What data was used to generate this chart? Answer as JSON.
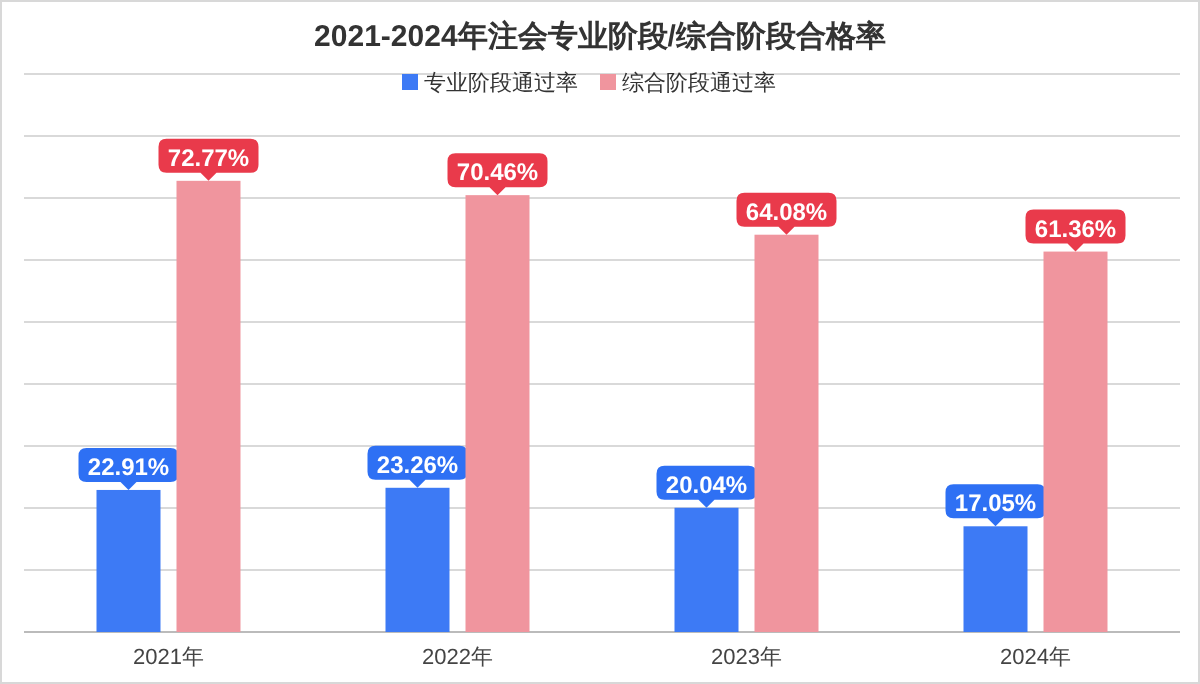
{
  "chart_data": {
    "type": "bar",
    "title": "2021-2024年注会专业阶段/综合阶段合格率",
    "categories": [
      "2021年",
      "2022年",
      "2023年",
      "2024年"
    ],
    "series": [
      {
        "name": "专业阶段通过率",
        "color": "#3d7af5",
        "values": [
          22.91,
          23.26,
          20.04,
          17.05
        ],
        "value_labels": [
          "22.91%",
          "23.26%",
          "20.04%",
          "17.05%"
        ]
      },
      {
        "name": "综合阶段通过率",
        "color": "#f0959e",
        "values": [
          72.77,
          70.46,
          64.08,
          61.36
        ],
        "value_labels": [
          "72.77%",
          "70.46%",
          "64.08%",
          "61.36%"
        ]
      }
    ],
    "ylim": [
      0,
      90
    ],
    "yticks": [
      {
        "value": 0,
        "label": null
      },
      {
        "value": 10,
        "label": null
      },
      {
        "value": 20,
        "label": null
      },
      {
        "value": 30,
        "label": null
      },
      {
        "value": 40,
        "label": null
      },
      {
        "value": 50,
        "label": null
      },
      {
        "value": 60,
        "label": null
      },
      {
        "value": 70,
        "label": null
      },
      {
        "value": 80,
        "label": null
      },
      {
        "value": 90,
        "label": null
      }
    ],
    "tick_labels": "x",
    "grid": "y",
    "legend": "top"
  }
}
